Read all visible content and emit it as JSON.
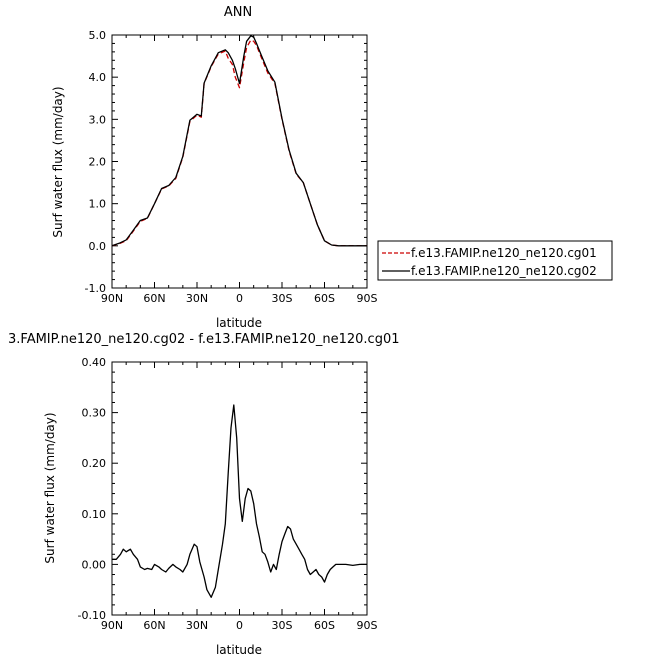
{
  "chart_data": [
    {
      "type": "line",
      "title": "ANN",
      "xlabel": "latitude",
      "ylabel": "Surf water flux (mm/day)",
      "xlim": [
        -90,
        90
      ],
      "ylim": [
        -1.0,
        5.0
      ],
      "x_direction": "90N on left to 90S on right",
      "xticks": [
        "90N",
        "60N",
        "30N",
        "0",
        "30S",
        "60S",
        "90S"
      ],
      "yticks": [
        "-1.0",
        "0.0",
        "1.0",
        "2.0",
        "3.0",
        "4.0",
        "5.0"
      ],
      "legend_position": "right, outside plot",
      "series": [
        {
          "name": "f.e13.FAMIP.ne120_ne120.cg01",
          "color": "#cc0000",
          "style": "dashed",
          "x": [
            -90,
            -85,
            -80,
            -75,
            -70,
            -65,
            -60,
            -55,
            -50,
            -45,
            -40,
            -35,
            -30,
            -27,
            -25,
            -20,
            -15,
            -10,
            -8,
            -5,
            -3,
            0,
            3,
            5,
            8,
            10,
            12,
            15,
            20,
            25,
            30,
            35,
            40,
            45,
            50,
            55,
            60,
            65,
            70,
            75,
            80,
            85,
            90
          ],
          "y": [
            0.0,
            0.05,
            0.12,
            0.35,
            0.58,
            0.65,
            1.0,
            1.35,
            1.42,
            1.6,
            2.1,
            2.95,
            3.1,
            3.05,
            3.85,
            4.25,
            4.55,
            4.62,
            4.45,
            4.3,
            4.0,
            3.75,
            4.35,
            4.7,
            4.88,
            4.85,
            4.75,
            4.5,
            4.1,
            3.85,
            3.0,
            2.25,
            1.7,
            1.5,
            1.0,
            0.5,
            0.12,
            0.02,
            0.0,
            0.0,
            0.0,
            0.0,
            0.0
          ]
        },
        {
          "name": "f.e13.FAMIP.ne120_ne120.cg02",
          "color": "#000000",
          "style": "solid",
          "x": [
            -90,
            -85,
            -80,
            -75,
            -70,
            -65,
            -60,
            -55,
            -50,
            -45,
            -40,
            -35,
            -30,
            -27,
            -25,
            -20,
            -15,
            -10,
            -8,
            -5,
            -3,
            0,
            3,
            5,
            8,
            10,
            12,
            15,
            20,
            25,
            30,
            35,
            40,
            45,
            50,
            55,
            60,
            65,
            70,
            75,
            80,
            85,
            90
          ],
          "y": [
            0.0,
            0.06,
            0.14,
            0.37,
            0.6,
            0.66,
            1.0,
            1.36,
            1.43,
            1.62,
            2.12,
            2.98,
            3.12,
            3.08,
            3.86,
            4.27,
            4.58,
            4.65,
            4.58,
            4.4,
            4.2,
            3.85,
            4.5,
            4.85,
            4.98,
            4.95,
            4.8,
            4.55,
            4.15,
            3.88,
            3.02,
            2.27,
            1.72,
            1.5,
            1.0,
            0.5,
            0.12,
            0.02,
            0.0,
            0.0,
            0.0,
            0.0,
            0.0
          ]
        }
      ]
    },
    {
      "type": "line",
      "title": "3.FAMIP.ne120_ne120.cg02 - f.e13.FAMIP.ne120_ne120.cg01",
      "xlabel": "latitude",
      "ylabel": "Surf water flux (mm/day)",
      "xlim": [
        -90,
        90
      ],
      "ylim": [
        -0.1,
        0.4
      ],
      "x_direction": "90N on left to 90S on right",
      "xticks": [
        "90N",
        "60N",
        "30N",
        "0",
        "30S",
        "60S",
        "90S"
      ],
      "yticks": [
        "-0.10",
        "0.00",
        "0.10",
        "0.20",
        "0.30",
        "0.40"
      ],
      "series": [
        {
          "color": "#000000",
          "style": "solid",
          "x": [
            -90,
            -87,
            -84,
            -82,
            -80,
            -77,
            -75,
            -72,
            -70,
            -67,
            -65,
            -62,
            -60,
            -57,
            -55,
            -52,
            -50,
            -47,
            -45,
            -42,
            -40,
            -37,
            -35,
            -32,
            -30,
            -28,
            -25,
            -23,
            -20,
            -17,
            -15,
            -12,
            -10,
            -8,
            -6,
            -4,
            -2,
            0,
            2,
            4,
            6,
            8,
            10,
            12,
            14,
            16,
            18,
            20,
            22,
            24,
            26,
            28,
            30,
            32,
            34,
            36,
            38,
            40,
            42,
            44,
            46,
            48,
            50,
            52,
            54,
            56,
            58,
            60,
            62,
            64,
            66,
            68,
            70,
            75,
            80,
            85,
            90
          ],
          "y": [
            0.01,
            0.01,
            0.02,
            0.03,
            0.025,
            0.03,
            0.02,
            0.01,
            -0.005,
            -0.01,
            -0.008,
            -0.01,
            0.0,
            -0.005,
            -0.01,
            -0.015,
            -0.008,
            0.0,
            -0.005,
            -0.01,
            -0.015,
            0.0,
            0.02,
            0.04,
            0.035,
            0.005,
            -0.025,
            -0.05,
            -0.065,
            -0.045,
            -0.01,
            0.04,
            0.08,
            0.18,
            0.27,
            0.315,
            0.25,
            0.13,
            0.085,
            0.13,
            0.15,
            0.145,
            0.12,
            0.08,
            0.055,
            0.025,
            0.02,
            0.005,
            -0.015,
            0.0,
            -0.01,
            0.02,
            0.045,
            0.06,
            0.075,
            0.07,
            0.05,
            0.04,
            0.03,
            0.02,
            0.01,
            -0.01,
            -0.02,
            -0.015,
            -0.01,
            -0.02,
            -0.025,
            -0.035,
            -0.02,
            -0.01,
            -0.005,
            0.0,
            0.0,
            0.0,
            -0.002,
            0.0,
            0.0
          ]
        }
      ]
    }
  ]
}
